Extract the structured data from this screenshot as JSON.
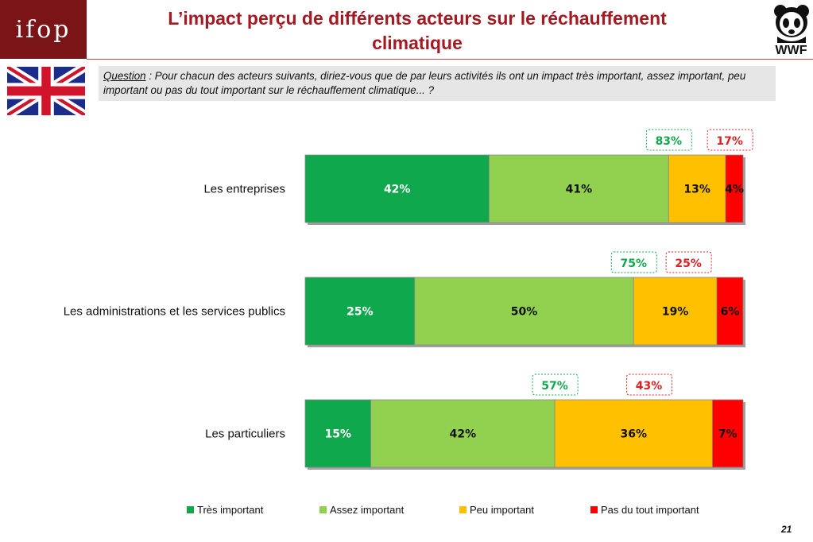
{
  "header": {
    "logo_left": "ifop",
    "logo_right": "WWF",
    "title_line1": "L’impact perçu de différents acteurs sur le réchauffement",
    "title_line2": "climatique"
  },
  "question": {
    "label": "Question",
    "text": " : Pour chacun des acteurs suivants, diriez-vous que de par leurs activités ils ont un impact très important, assez important, peu important ou pas du tout important sur le réchauffement climatique... ?"
  },
  "page_number": "21",
  "colors": {
    "tres": "#10a84c",
    "assez": "#92d050",
    "peu": "#ffc000",
    "pas": "#ff0000",
    "title": "#a31a22",
    "total_important": "#10a84c",
    "total_not": "#e02020"
  },
  "chart_data": {
    "type": "bar",
    "orientation": "horizontal",
    "stacked": true,
    "categories": [
      "Les entreprises",
      "Les administrations et les services publics",
      "Les particuliers"
    ],
    "series": [
      {
        "name": "Très important",
        "values": [
          42,
          25,
          15
        ],
        "labels": [
          "42%",
          "25%",
          "15%"
        ]
      },
      {
        "name": "Assez important",
        "values": [
          41,
          50,
          42
        ],
        "labels": [
          "41%",
          "50%",
          "42%"
        ]
      },
      {
        "name": "Peu important",
        "values": [
          13,
          19,
          36
        ],
        "labels": [
          "13%",
          "19%",
          "36%"
        ]
      },
      {
        "name": "Pas du tout important",
        "values": [
          4,
          6,
          7
        ],
        "labels": [
          "4%",
          "6%",
          "7%"
        ]
      }
    ],
    "totals_important": [
      "83%",
      "75%",
      "57%"
    ],
    "totals_not_important": [
      "17%",
      "25%",
      "43%"
    ],
    "xlim": [
      0,
      100
    ],
    "legend_position": "bottom",
    "grid": false
  }
}
